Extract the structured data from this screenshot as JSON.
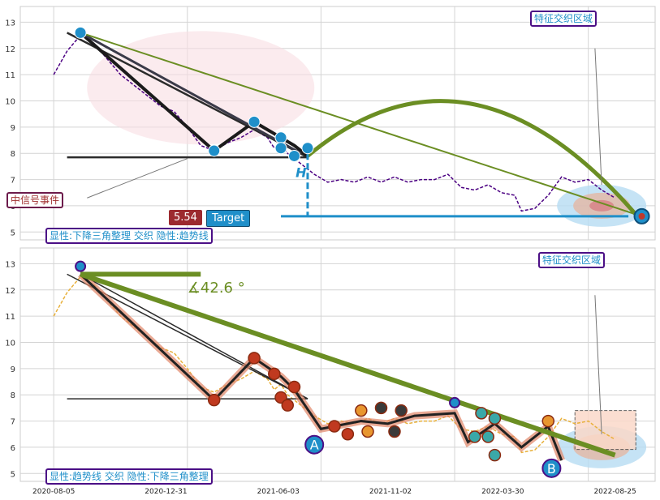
{
  "chart_data": [
    {
      "type": "line",
      "panel": "top",
      "ylim": [
        4.7,
        13.6
      ],
      "yticks": [
        5,
        6,
        7,
        8,
        9,
        10,
        11,
        12,
        13
      ],
      "series": [
        {
          "color": "#4b0082",
          "values": [
            [
              0.0,
              11.0
            ],
            [
              2.0,
              11.9
            ],
            [
              4.0,
              12.5
            ],
            [
              6.0,
              12.2
            ],
            [
              8.0,
              11.6
            ],
            [
              10.0,
              11.0
            ],
            [
              12.0,
              10.6
            ],
            [
              14.0,
              10.2
            ],
            [
              16.0,
              9.8
            ],
            [
              18.0,
              9.6
            ],
            [
              20.0,
              9.0
            ],
            [
              22.0,
              8.3
            ],
            [
              24.0,
              8.1
            ],
            [
              26.0,
              8.4
            ],
            [
              28.0,
              8.6
            ],
            [
              30.0,
              8.9
            ],
            [
              32.0,
              8.6
            ],
            [
              33.0,
              8.2
            ],
            [
              34.0,
              8.4
            ],
            [
              35.0,
              8.0
            ],
            [
              37.0,
              7.6
            ],
            [
              39.0,
              7.2
            ],
            [
              41.0,
              6.9
            ],
            [
              43.0,
              7.0
            ],
            [
              45.0,
              6.9
            ],
            [
              47.0,
              7.1
            ],
            [
              49.0,
              6.9
            ],
            [
              51.0,
              7.1
            ],
            [
              53.0,
              6.9
            ],
            [
              55.0,
              7.0
            ],
            [
              57.0,
              7.0
            ],
            [
              59.0,
              7.2
            ],
            [
              61.0,
              6.7
            ],
            [
              63.0,
              6.6
            ],
            [
              65.0,
              6.8
            ],
            [
              67.0,
              6.5
            ],
            [
              69.0,
              6.4
            ],
            [
              70.0,
              5.8
            ],
            [
              72.0,
              5.9
            ],
            [
              74.0,
              6.4
            ],
            [
              76.0,
              7.1
            ],
            [
              78.0,
              6.9
            ],
            [
              80.0,
              7.0
            ],
            [
              82.0,
              6.6
            ],
            [
              84.0,
              6.3
            ]
          ]
        }
      ],
      "legend_text_1": "显性:下降三角整理 交织 隐性:趋势线",
      "legend_text_2": "中信号事件",
      "legend_text_3": "特征交织区域",
      "target_value": "5.54",
      "target_label": "Target",
      "h_label": "H"
    },
    {
      "type": "line",
      "panel": "bottom",
      "ylim": [
        4.7,
        13.6
      ],
      "yticks": [
        5,
        6,
        7,
        8,
        9,
        10,
        11,
        12,
        13
      ],
      "xticks": [
        "2020-08-05",
        "2020-12-31",
        "2021-06-03",
        "2021-11-02",
        "2022-03-30",
        "2022-08-25"
      ],
      "series": [
        {
          "color": "#e8b03a",
          "values": [
            [
              0.0,
              11.0
            ],
            [
              2.0,
              11.9
            ],
            [
              4.0,
              12.5
            ],
            [
              6.0,
              12.2
            ],
            [
              8.0,
              11.6
            ],
            [
              10.0,
              11.0
            ],
            [
              12.0,
              10.6
            ],
            [
              14.0,
              10.2
            ],
            [
              16.0,
              9.8
            ],
            [
              18.0,
              9.6
            ],
            [
              20.0,
              9.0
            ],
            [
              22.0,
              8.3
            ],
            [
              24.0,
              8.1
            ],
            [
              26.0,
              8.4
            ],
            [
              28.0,
              8.6
            ],
            [
              30.0,
              8.9
            ],
            [
              32.0,
              8.6
            ],
            [
              33.0,
              8.2
            ],
            [
              34.0,
              8.4
            ],
            [
              35.0,
              8.0
            ],
            [
              37.0,
              7.6
            ],
            [
              39.0,
              7.2
            ],
            [
              41.0,
              6.9
            ],
            [
              43.0,
              7.0
            ],
            [
              45.0,
              6.9
            ],
            [
              47.0,
              7.1
            ],
            [
              49.0,
              6.9
            ],
            [
              51.0,
              7.1
            ],
            [
              53.0,
              6.9
            ],
            [
              55.0,
              7.0
            ],
            [
              57.0,
              7.0
            ],
            [
              59.0,
              7.2
            ],
            [
              61.0,
              6.7
            ],
            [
              63.0,
              6.6
            ],
            [
              65.0,
              6.8
            ],
            [
              67.0,
              6.5
            ],
            [
              69.0,
              6.4
            ],
            [
              70.0,
              5.8
            ],
            [
              72.0,
              5.9
            ],
            [
              74.0,
              6.4
            ],
            [
              76.0,
              7.1
            ],
            [
              78.0,
              6.9
            ],
            [
              80.0,
              7.0
            ],
            [
              82.0,
              6.6
            ],
            [
              84.0,
              6.3
            ]
          ]
        }
      ],
      "angle_label": "∡42.6 °",
      "legend_text_1": "显性:趋势线 交织 隐性:下降三角整理",
      "legend_text_2": "特征交织区域",
      "marker_a": "A",
      "marker_b": "B"
    }
  ]
}
